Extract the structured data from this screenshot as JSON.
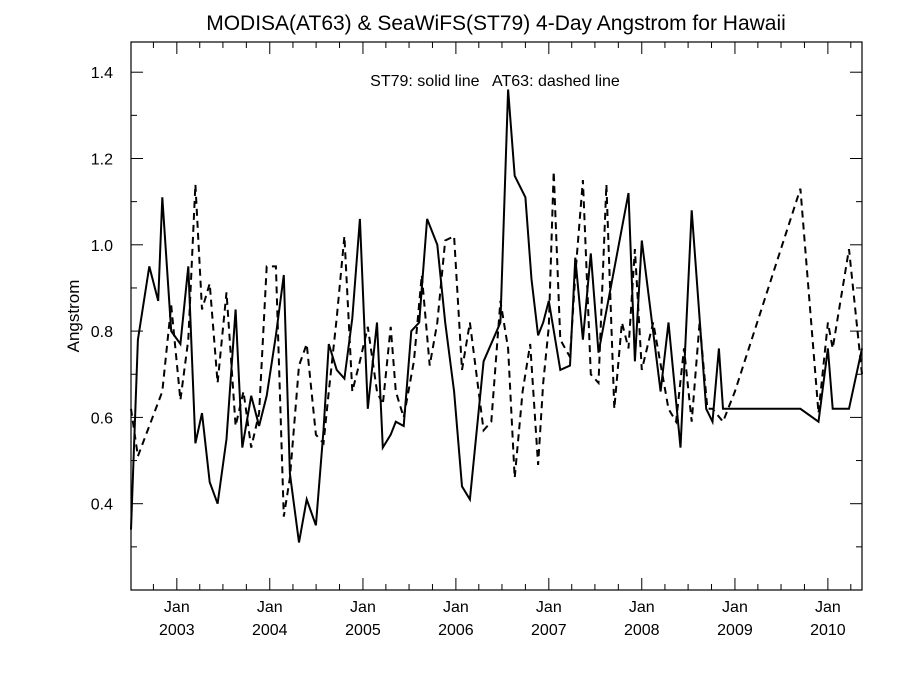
{
  "chart_data": {
    "type": "line",
    "title": "MODISA(AT63) & SeaWiFS(ST79) 4-Day Angstrom for Hawaii",
    "annotation": "ST79: solid line   AT63: dashed line",
    "ylabel": "Angstrom",
    "xlabel": "",
    "xlim": [
      "2002-07-05",
      "2010-05-15"
    ],
    "ylim": [
      0.2,
      1.47
    ],
    "y_ticks": [
      0.4,
      0.6,
      0.8,
      1.0,
      1.2,
      1.4
    ],
    "y_tick_labels": [
      "0.4",
      "0.6",
      "0.8",
      "1.0",
      "1.2",
      "1.4"
    ],
    "x_ticks": [
      "2003-01-01",
      "2004-01-01",
      "2005-01-01",
      "2006-01-01",
      "2007-01-01",
      "2008-01-01",
      "2009-01-01",
      "2010-01-01"
    ],
    "x_tick_labels": [
      [
        "Jan",
        "2003"
      ],
      [
        "Jan",
        "2004"
      ],
      [
        "Jan",
        "2005"
      ],
      [
        "Jan",
        "2006"
      ],
      [
        "Jan",
        "2007"
      ],
      [
        "Jan",
        "2008"
      ],
      [
        "Jan",
        "2009"
      ],
      [
        "Jan",
        "2010"
      ]
    ],
    "grid": false,
    "series": [
      {
        "name": "ST79",
        "style": "solid",
        "x": [
          "2002-07-05",
          "2002-08-01",
          "2002-09-15",
          "2002-10-20",
          "2002-11-05",
          "2002-12-10",
          "2003-01-15",
          "2003-02-15",
          "2003-03-15",
          "2003-04-10",
          "2003-05-10",
          "2003-06-10",
          "2003-07-15",
          "2003-08-20",
          "2003-09-15",
          "2003-10-20",
          "2003-11-20",
          "2003-12-20",
          "2004-01-25",
          "2004-02-25",
          "2004-03-20",
          "2004-04-25",
          "2004-05-25",
          "2004-06-30",
          "2004-07-30",
          "2004-08-20",
          "2004-09-20",
          "2004-10-20",
          "2004-11-20",
          "2004-12-20",
          "2005-01-20",
          "2005-02-25",
          "2005-03-20",
          "2005-04-20",
          "2005-05-10",
          "2005-06-10",
          "2005-07-10",
          "2005-08-10",
          "2005-09-10",
          "2005-10-20",
          "2005-11-20",
          "2005-12-25",
          "2006-01-25",
          "2006-02-25",
          "2006-04-20",
          "2006-06-25",
          "2006-07-25",
          "2006-08-20",
          "2006-10-01",
          "2006-10-25",
          "2006-11-20",
          "2006-12-10",
          "2007-01-01",
          "2007-01-15",
          "2007-02-15",
          "2007-03-25",
          "2007-04-15",
          "2007-05-15",
          "2007-06-15",
          "2007-07-15",
          "2007-11-10",
          "2007-12-05",
          "2008-01-01",
          "2008-03-15",
          "2008-04-15",
          "2008-06-01",
          "2008-07-15",
          "2008-09-10",
          "2008-10-05",
          "2008-10-30",
          "2008-11-15",
          "2009-01-01",
          "2009-09-15",
          "2009-11-25",
          "2010-01-01",
          "2010-01-20",
          "2010-03-25",
          "2010-05-15"
        ],
        "values": [
          0.34,
          0.78,
          0.95,
          0.87,
          1.11,
          0.8,
          0.77,
          0.95,
          0.54,
          0.61,
          0.45,
          0.4,
          0.55,
          0.85,
          0.53,
          0.65,
          0.58,
          0.65,
          0.79,
          0.93,
          0.47,
          0.31,
          0.41,
          0.35,
          0.57,
          0.77,
          0.71,
          0.69,
          0.83,
          1.06,
          0.62,
          0.82,
          0.53,
          0.56,
          0.59,
          0.58,
          0.8,
          0.82,
          1.06,
          1.0,
          0.82,
          0.66,
          0.44,
          0.41,
          0.73,
          0.82,
          1.36,
          1.16,
          1.11,
          0.92,
          0.79,
          0.82,
          0.87,
          0.82,
          0.71,
          0.72,
          0.97,
          0.78,
          0.98,
          0.75,
          1.12,
          0.73,
          1.01,
          0.66,
          0.82,
          0.53,
          1.08,
          0.62,
          0.59,
          0.76,
          0.62,
          0.62,
          0.62,
          0.59,
          0.76,
          0.62,
          0.62,
          0.76
        ]
      },
      {
        "name": "AT63",
        "style": "dashed",
        "x": [
          "2002-07-05",
          "2002-08-01",
          "2002-09-15",
          "2002-11-05",
          "2002-12-10",
          "2003-01-15",
          "2003-02-15",
          "2003-03-15",
          "2003-04-10",
          "2003-05-10",
          "2003-06-10",
          "2003-07-15",
          "2003-08-20",
          "2003-09-20",
          "2003-10-20",
          "2003-11-20",
          "2003-12-20",
          "2004-01-25",
          "2004-02-25",
          "2004-03-20",
          "2004-04-25",
          "2004-05-25",
          "2004-06-30",
          "2004-07-30",
          "2004-08-20",
          "2004-09-20",
          "2004-10-20",
          "2004-11-20",
          "2004-12-20",
          "2005-01-20",
          "2005-02-25",
          "2005-03-20",
          "2005-04-20",
          "2005-05-10",
          "2005-06-10",
          "2005-07-20",
          "2005-08-20",
          "2005-09-20",
          "2005-10-20",
          "2005-11-20",
          "2005-12-25",
          "2006-01-25",
          "2006-02-25",
          "2006-04-20",
          "2006-05-20",
          "2006-06-25",
          "2006-07-25",
          "2006-08-20",
          "2006-09-20",
          "2006-10-20",
          "2006-11-20",
          "2006-12-10",
          "2007-01-01",
          "2007-01-20",
          "2007-02-15",
          "2007-03-25",
          "2007-04-15",
          "2007-05-15",
          "2007-06-15",
          "2007-07-15",
          "2007-08-15",
          "2007-09-15",
          "2007-10-15",
          "2007-11-10",
          "2007-12-05",
          "2008-01-01",
          "2008-02-15",
          "2008-04-15",
          "2008-05-15",
          "2008-06-15",
          "2008-07-15",
          "2008-08-15",
          "2008-09-15",
          "2008-10-05",
          "2008-11-15",
          "2009-01-01",
          "2009-09-15",
          "2009-11-25",
          "2010-01-01",
          "2010-01-20",
          "2010-03-25",
          "2010-05-15"
        ],
        "values": [
          0.62,
          0.51,
          0.58,
          0.66,
          0.86,
          0.64,
          0.78,
          1.14,
          0.85,
          0.91,
          0.68,
          0.89,
          0.58,
          0.66,
          0.53,
          0.61,
          0.95,
          0.95,
          0.37,
          0.46,
          0.72,
          0.77,
          0.56,
          0.54,
          0.66,
          0.83,
          1.02,
          0.66,
          0.73,
          0.81,
          0.66,
          0.63,
          0.81,
          0.66,
          0.6,
          0.73,
          0.93,
          0.72,
          0.82,
          1.01,
          1.02,
          0.71,
          0.82,
          0.57,
          0.59,
          0.87,
          0.76,
          0.46,
          0.66,
          0.77,
          0.49,
          0.68,
          0.81,
          1.17,
          0.78,
          0.74,
          0.93,
          1.15,
          0.7,
          0.68,
          1.14,
          0.62,
          0.82,
          0.76,
          0.99,
          0.71,
          0.82,
          0.62,
          0.59,
          0.76,
          0.59,
          0.82,
          0.62,
          0.62,
          0.59,
          0.66,
          1.13,
          0.61,
          0.82,
          0.76,
          0.99,
          0.7
        ]
      }
    ]
  }
}
